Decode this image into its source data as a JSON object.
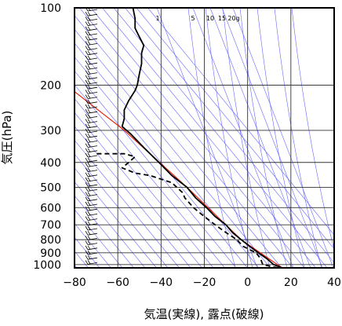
{
  "chart_data": {
    "type": "line",
    "title": "",
    "xlabel": "気温(実線), 露点(破線)",
    "ylabel": "気圧(hPa)",
    "xlim": [
      -80,
      40
    ],
    "ylim": [
      1030,
      100
    ],
    "y_scale": "log",
    "grid": true,
    "x_ticks": [
      -80,
      -60,
      -40,
      -20,
      0,
      20,
      40
    ],
    "y_ticks": [
      100,
      200,
      300,
      400,
      500,
      600,
      700,
      800,
      900,
      1000
    ],
    "mixing_ratio_labels": [
      "1",
      "5",
      "10",
      "15",
      "20g"
    ],
    "mixing_ratio_values": [
      1,
      5,
      10,
      15,
      20
    ],
    "series": [
      {
        "name": "気温",
        "style": "solid",
        "color": "#000000",
        "points": [
          [
            16,
            1030
          ],
          [
            12,
            1000
          ],
          [
            9,
            950
          ],
          [
            5,
            900
          ],
          [
            1,
            850
          ],
          [
            -3,
            800
          ],
          [
            -7,
            750
          ],
          [
            -10,
            700
          ],
          [
            -15,
            650
          ],
          [
            -19,
            600
          ],
          [
            -24,
            550
          ],
          [
            -28,
            500
          ],
          [
            -35,
            450
          ],
          [
            -41,
            400
          ],
          [
            -48,
            350
          ],
          [
            -54,
            310
          ],
          [
            -58,
            290
          ],
          [
            -57,
            270
          ],
          [
            -57,
            250
          ],
          [
            -55,
            230
          ],
          [
            -52,
            210
          ],
          [
            -51,
            200
          ],
          [
            -50,
            180
          ],
          [
            -49,
            165
          ],
          [
            -49,
            150
          ],
          [
            -48,
            140
          ],
          [
            -50,
            130
          ],
          [
            -52,
            120
          ],
          [
            -52,
            110
          ],
          [
            -53,
            100
          ]
        ]
      },
      {
        "name": "露点",
        "style": "dashed",
        "color": "#000000",
        "points": [
          [
            14,
            1030
          ],
          [
            7,
            1000
          ],
          [
            6,
            950
          ],
          [
            4,
            900
          ],
          [
            -2,
            850
          ],
          [
            -5,
            800
          ],
          [
            -10,
            750
          ],
          [
            -15,
            700
          ],
          [
            -20,
            650
          ],
          [
            -25,
            600
          ],
          [
            -29,
            550
          ],
          [
            -30,
            525
          ],
          [
            -35,
            480
          ],
          [
            -45,
            450
          ],
          [
            -52,
            440
          ],
          [
            -58,
            420
          ],
          [
            -55,
            400
          ],
          [
            -52,
            380
          ],
          [
            -57,
            370
          ],
          [
            -70,
            370
          ]
        ]
      },
      {
        "name": "",
        "style": "solid",
        "color": "#e8250f",
        "points": [
          [
            16,
            1030
          ],
          [
            -3,
            800
          ],
          [
            -28,
            500
          ],
          [
            -57,
            300
          ],
          [
            -80,
            212
          ]
        ]
      }
    ],
    "colors": {
      "isotherm": "#6666ff",
      "grid": "#333333",
      "temperature": "#000000",
      "dewpoint": "#000000",
      "parcel": "#e8250f"
    }
  }
}
